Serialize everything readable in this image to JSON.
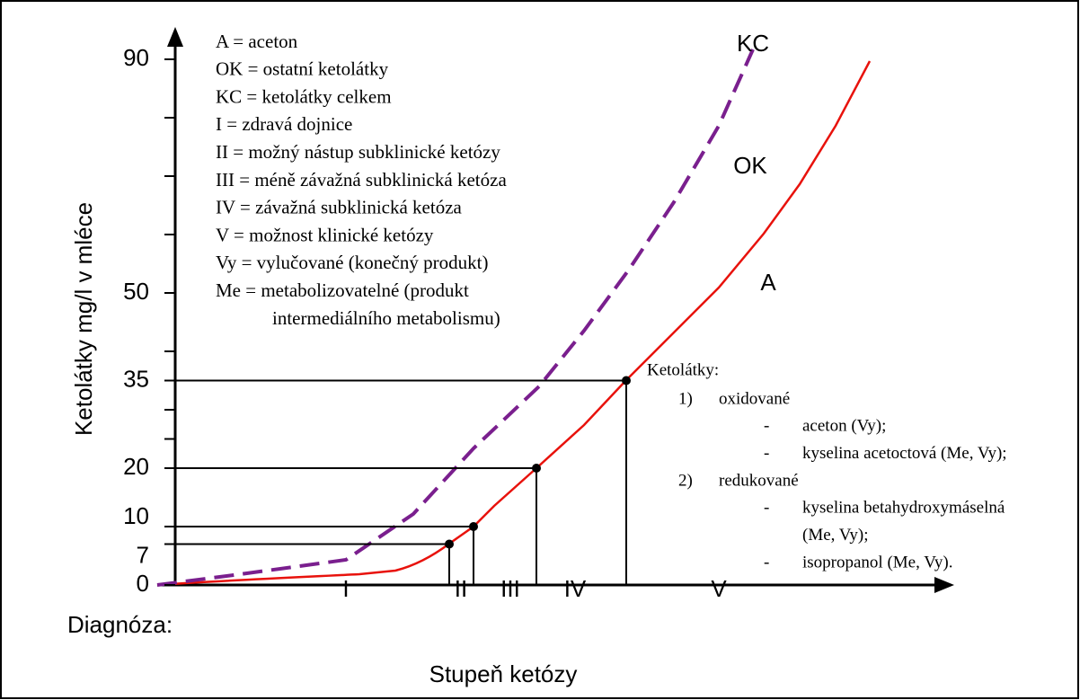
{
  "y_axis": {
    "label": "Ketolátky mg/l v mléce",
    "ylim": [
      0,
      95
    ],
    "yticks": [
      0,
      7,
      10,
      20,
      35,
      50,
      90
    ],
    "minor_yticks": [
      25,
      30,
      40,
      60,
      70,
      80
    ]
  },
  "x_axis": {
    "label": "Stupeň ketózy",
    "row_label": "Diagnóza:",
    "stages": [
      "I",
      "II",
      "III",
      "IV",
      "V"
    ]
  },
  "curves": {
    "kc": "KC",
    "ok": "OK",
    "a": "A"
  },
  "legend": [
    "A = aceton",
    "OK = ostatní ketolátky",
    "KC = ketolátky celkem",
    "I = zdravá dojnice",
    "II = možný nástup subklinické ketózy",
    "III = méně závažná subklinická ketóza",
    "IV = závažná subklinická ketóza",
    "V = možnost klinické ketózy",
    "Vy = vylučované (konečný produkt)",
    "Me = metabolizovatelné (produkt",
    "intermediálního metabolismu)"
  ],
  "note": {
    "title": "Ketolátky:",
    "dash": "-",
    "groups": [
      {
        "marker": "1)",
        "label": "oxidované",
        "items": [
          [
            "aceton (Vy);"
          ],
          [
            "kyselina acetoctová (Me, Vy);"
          ]
        ]
      },
      {
        "marker": "2)",
        "label": "redukované",
        "items": [
          [
            "kyselina betahydroxymáselná",
            "(Me, Vy);"
          ],
          [
            "isopropanol (Me, Vy)."
          ]
        ]
      }
    ]
  }
}
